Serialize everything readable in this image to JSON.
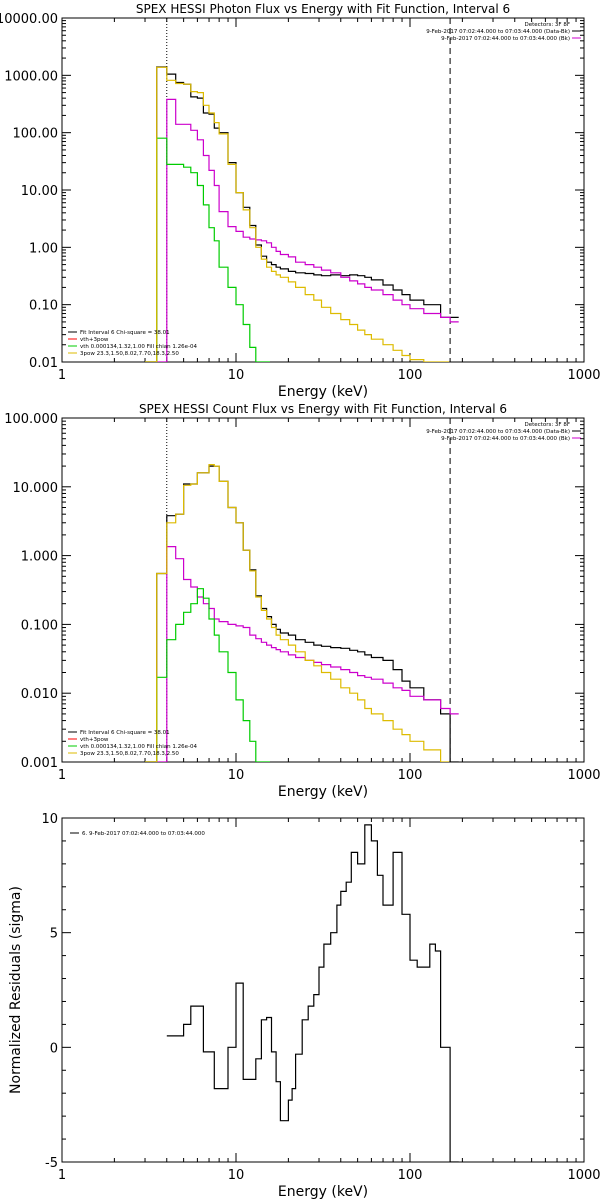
{
  "chart_data": [
    {
      "type": "line",
      "title": "SPEX HESSI Photon Flux vs Energy with Fit Function, Interval 6",
      "xlabel": "Energy (keV)",
      "ylabel": "",
      "x_scale": "log",
      "y_scale": "log",
      "xlim": [
        1,
        1000
      ],
      "ylim": [
        0.01,
        10000
      ],
      "x_ticks": [
        {
          "v": 1,
          "label": "1"
        },
        {
          "v": 10,
          "label": "10"
        },
        {
          "v": 100,
          "label": "100"
        },
        {
          "v": 1000,
          "label": "1000"
        }
      ],
      "y_ticks": [
        {
          "v": 0.01,
          "label": "0.01"
        },
        {
          "v": 0.1,
          "label": "0.10"
        },
        {
          "v": 1,
          "label": "1.00"
        },
        {
          "v": 10,
          "label": "10.00"
        },
        {
          "v": 100,
          "label": "100.00"
        },
        {
          "v": 1000,
          "label": "1000.00"
        },
        {
          "v": 10000,
          "label": "10000.00"
        }
      ],
      "vlines": [
        {
          "x": 4,
          "style": "dotted"
        },
        {
          "x": 170,
          "style": "dashed"
        }
      ],
      "legend_top_right": [
        {
          "text": "Detectors: 3F 8F",
          "color": "#000000"
        },
        {
          "text": "9-Feb-2017 07:02:44.000 to 07:03:44.000 (Data-Bk)",
          "color": "#000000"
        },
        {
          "text": "9-Feb-2017 07:02:44.000 to 07:03:44.000 (Bk)",
          "color": "#cc00cc"
        }
      ],
      "legend_bottom_left": [
        {
          "text": "Fit Interval 6   Chi-square = 38.01",
          "color": "#000000"
        },
        {
          "text": "vth+3pow",
          "color": "#ff0000"
        },
        {
          "text": "vth 0.000134,1.32,1.00   Fill chian 1.26e-04",
          "color": "#00cc00"
        },
        {
          "text": "3pow 23.3,1.50,8.02,7.70,18.3,2.50",
          "color": "#ddbb00"
        }
      ],
      "series": [
        {
          "color": "#000000",
          "x": [
            3,
            3.5,
            4,
            4.5,
            5,
            5.5,
            6,
            6.5,
            7,
            7.5,
            8,
            9,
            10,
            11,
            12,
            13,
            14,
            15,
            16,
            17,
            18,
            20,
            22,
            25,
            28,
            31,
            35,
            40,
            45,
            50,
            55,
            60,
            70,
            80,
            90,
            100,
            120,
            150,
            170
          ],
          "values": [
            0.01,
            1400,
            1050,
            750,
            700,
            420,
            400,
            220,
            210,
            120,
            100,
            30,
            9,
            5,
            2.4,
            1.1,
            0.7,
            0.55,
            0.5,
            0.45,
            0.42,
            0.38,
            0.36,
            0.35,
            0.33,
            0.32,
            0.33,
            0.32,
            0.33,
            0.32,
            0.3,
            0.27,
            0.22,
            0.18,
            0.15,
            0.12,
            0.1,
            0.06,
            0.06
          ]
        },
        {
          "color": "#cc00cc",
          "x": [
            3,
            3.5,
            4,
            4.5,
            5,
            5.5,
            6,
            6.5,
            7,
            7.5,
            8,
            9,
            10,
            11,
            12,
            13,
            14,
            15,
            16,
            17,
            18,
            20,
            22,
            25,
            28,
            31,
            35,
            40,
            45,
            50,
            55,
            60,
            70,
            80,
            90,
            100,
            120,
            150,
            170
          ],
          "values": [
            0.01,
            0.01,
            380,
            140,
            140,
            110,
            75,
            40,
            22,
            12,
            4.2,
            2.3,
            1.9,
            1.5,
            1.4,
            1.35,
            1.3,
            1.2,
            1.0,
            0.85,
            0.75,
            0.68,
            0.55,
            0.5,
            0.45,
            0.4,
            0.36,
            0.3,
            0.26,
            0.23,
            0.2,
            0.18,
            0.15,
            0.12,
            0.1,
            0.085,
            0.07,
            0.06,
            0.05
          ]
        },
        {
          "color": "#00cc00",
          "x": [
            3,
            3.5,
            4,
            4.5,
            5,
            5.5,
            6,
            6.5,
            7,
            7.5,
            8,
            9,
            10,
            11,
            12,
            13,
            14
          ],
          "values": [
            0.01,
            80,
            28,
            28,
            25,
            20,
            12,
            5.5,
            2.2,
            1.3,
            0.45,
            0.2,
            0.1,
            0.045,
            0.018,
            0.01,
            0.01
          ]
        },
        {
          "color": "#ddbb00",
          "x": [
            3,
            3.5,
            4,
            4.5,
            5,
            5.5,
            6,
            6.5,
            7,
            7.5,
            8,
            9,
            10,
            11,
            12,
            13,
            14,
            15,
            16,
            17,
            18,
            20,
            22,
            25,
            28,
            31,
            35,
            40,
            45,
            50,
            55,
            60,
            70,
            80,
            90,
            100,
            120,
            150
          ],
          "values": [
            0.01,
            1380,
            820,
            720,
            700,
            520,
            500,
            300,
            220,
            150,
            95,
            28,
            9,
            4.5,
            2.2,
            1.0,
            0.62,
            0.45,
            0.38,
            0.33,
            0.3,
            0.25,
            0.2,
            0.15,
            0.12,
            0.09,
            0.07,
            0.055,
            0.045,
            0.036,
            0.03,
            0.025,
            0.02,
            0.016,
            0.013,
            0.011,
            0.01,
            0.01
          ]
        }
      ]
    },
    {
      "type": "line",
      "title": "SPEX HESSI Count Flux vs Energy with Fit Function, Interval 6",
      "xlabel": "Energy (keV)",
      "ylabel": "",
      "x_scale": "log",
      "y_scale": "log",
      "xlim": [
        1,
        1000
      ],
      "ylim": [
        0.001,
        100
      ],
      "x_ticks": [
        {
          "v": 1,
          "label": "1"
        },
        {
          "v": 10,
          "label": "10"
        },
        {
          "v": 100,
          "label": "100"
        },
        {
          "v": 1000,
          "label": "1000"
        }
      ],
      "y_ticks": [
        {
          "v": 0.001,
          "label": "0.001"
        },
        {
          "v": 0.01,
          "label": "0.010"
        },
        {
          "v": 0.1,
          "label": "0.100"
        },
        {
          "v": 1,
          "label": "1.000"
        },
        {
          "v": 10,
          "label": "10.000"
        },
        {
          "v": 100,
          "label": "100.000"
        }
      ],
      "vlines": [
        {
          "x": 4,
          "style": "dotted"
        },
        {
          "x": 170,
          "style": "dashed"
        }
      ],
      "legend_top_right": [
        {
          "text": "Detectors: 3F 8F",
          "color": "#000000"
        },
        {
          "text": "9-Feb-2017 07:02:44.000 to 07:03:44.000 (Data-Bk)",
          "color": "#000000"
        },
        {
          "text": "9-Feb-2017 07:02:44.000 to 07:03:44.000 (Bk)",
          "color": "#cc00cc"
        }
      ],
      "legend_bottom_left": [
        {
          "text": "Fit Interval 6   Chi-square = 38.01",
          "color": "#000000"
        },
        {
          "text": "vth+3pow",
          "color": "#ff0000"
        },
        {
          "text": "vth 0.000134,1.32,1.00   Fill chian 1.26e-04",
          "color": "#00cc00"
        },
        {
          "text": "3pow 23.3,1.50,8.02,7.70,18.3,2.50",
          "color": "#ddbb00"
        }
      ],
      "series": [
        {
          "color": "#000000",
          "x": [
            3,
            3.5,
            4,
            4.5,
            5,
            5.5,
            6,
            6.5,
            7,
            7.5,
            8,
            9,
            10,
            11,
            12,
            13,
            14,
            15,
            16,
            17,
            18,
            20,
            22,
            25,
            28,
            31,
            35,
            40,
            45,
            50,
            55,
            60,
            70,
            80,
            90,
            100,
            120,
            150,
            170
          ],
          "values": [
            0.001,
            0.55,
            3.8,
            4.0,
            11,
            11,
            16,
            16,
            20,
            20,
            12,
            5,
            3,
            1.2,
            0.62,
            0.26,
            0.17,
            0.13,
            0.1,
            0.085,
            0.075,
            0.07,
            0.06,
            0.055,
            0.05,
            0.048,
            0.046,
            0.045,
            0.042,
            0.04,
            0.036,
            0.033,
            0.03,
            0.022,
            0.015,
            0.012,
            0.008,
            0.005,
            0.001
          ]
        },
        {
          "color": "#cc00cc",
          "x": [
            3,
            3.5,
            4,
            4.5,
            5,
            5.5,
            6,
            6.5,
            7,
            7.5,
            8,
            9,
            10,
            11,
            12,
            13,
            14,
            15,
            16,
            17,
            18,
            20,
            22,
            25,
            28,
            31,
            35,
            40,
            45,
            50,
            55,
            60,
            70,
            80,
            90,
            100,
            120,
            150,
            170
          ],
          "values": [
            0.001,
            0.001,
            1.35,
            0.9,
            0.45,
            0.35,
            0.25,
            0.2,
            0.17,
            0.12,
            0.11,
            0.1,
            0.095,
            0.09,
            0.07,
            0.062,
            0.055,
            0.05,
            0.046,
            0.043,
            0.04,
            0.036,
            0.033,
            0.03,
            0.028,
            0.026,
            0.024,
            0.022,
            0.02,
            0.018,
            0.017,
            0.016,
            0.014,
            0.012,
            0.011,
            0.009,
            0.008,
            0.006,
            0.005
          ]
        },
        {
          "color": "#00cc00",
          "x": [
            3,
            3.5,
            4,
            4.5,
            5,
            5.5,
            6,
            6.5,
            7,
            7.5,
            8,
            9,
            10,
            11,
            12,
            13,
            14
          ],
          "values": [
            0.001,
            0.017,
            0.06,
            0.1,
            0.15,
            0.2,
            0.33,
            0.24,
            0.12,
            0.07,
            0.04,
            0.02,
            0.008,
            0.004,
            0.002,
            0.001,
            0.001
          ]
        },
        {
          "color": "#ddbb00",
          "x": [
            3,
            3.5,
            4,
            4.5,
            5,
            5.5,
            6,
            6.5,
            7,
            7.5,
            8,
            9,
            10,
            11,
            12,
            13,
            14,
            15,
            16,
            17,
            18,
            20,
            22,
            25,
            28,
            31,
            35,
            40,
            45,
            50,
            55,
            60,
            70,
            80,
            90,
            100,
            120,
            150
          ],
          "values": [
            0.001,
            0.55,
            3.0,
            4.0,
            10.5,
            11,
            16,
            16,
            21,
            20,
            12,
            5,
            3,
            1.2,
            0.6,
            0.25,
            0.16,
            0.12,
            0.09,
            0.07,
            0.06,
            0.05,
            0.04,
            0.03,
            0.025,
            0.02,
            0.016,
            0.012,
            0.01,
            0.008,
            0.006,
            0.005,
            0.004,
            0.003,
            0.0025,
            0.002,
            0.0015,
            0.001
          ]
        }
      ]
    },
    {
      "type": "line",
      "title": "",
      "xlabel": "Energy (keV)",
      "ylabel": "Normalized Residuals (sigma)",
      "x_scale": "log",
      "y_scale": "linear",
      "xlim": [
        1,
        1000
      ],
      "ylim": [
        -5,
        10
      ],
      "x_ticks": [
        {
          "v": 1,
          "label": "1"
        },
        {
          "v": 10,
          "label": "10"
        },
        {
          "v": 100,
          "label": "100"
        },
        {
          "v": 1000,
          "label": "1000"
        }
      ],
      "y_ticks": [
        {
          "v": -5,
          "label": "-5"
        },
        {
          "v": 0,
          "label": "0"
        },
        {
          "v": 5,
          "label": "5"
        },
        {
          "v": 10,
          "label": "10"
        }
      ],
      "legend_top_left": [
        {
          "text": "6.  9-Feb-2017 07:02:44.000 to 07:03:44.000",
          "color": "#000000"
        }
      ],
      "series": [
        {
          "color": "#000000",
          "x": [
            4,
            4.5,
            5,
            5.5,
            6,
            6.5,
            7,
            7.5,
            8,
            9,
            10,
            11,
            12,
            13,
            14,
            15,
            16,
            17,
            18,
            19,
            20,
            21,
            22,
            24,
            26,
            28,
            30,
            32,
            35,
            38,
            40,
            43,
            46,
            50,
            55,
            60,
            65,
            70,
            80,
            90,
            100,
            110,
            120,
            130,
            140,
            150,
            170
          ],
          "values": [
            0.5,
            0.5,
            1.0,
            1.8,
            1.8,
            -0.2,
            -0.2,
            -1.8,
            -1.8,
            0.0,
            2.8,
            -1.4,
            -1.4,
            -0.5,
            1.2,
            1.3,
            -0.2,
            -1.5,
            -3.2,
            -3.2,
            -2.3,
            -1.8,
            -0.3,
            1.2,
            1.8,
            2.3,
            3.5,
            4.5,
            5.0,
            6.2,
            6.8,
            7.2,
            8.5,
            8.0,
            9.7,
            9.0,
            7.5,
            6.2,
            8.5,
            5.8,
            3.8,
            3.5,
            3.5,
            4.5,
            4.2,
            0.0,
            -5
          ]
        }
      ]
    }
  ]
}
